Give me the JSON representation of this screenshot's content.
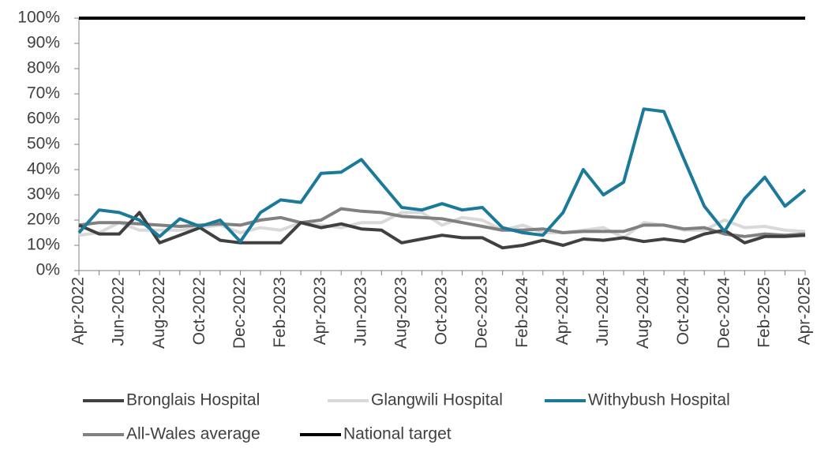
{
  "chart_data": {
    "type": "line",
    "categories": [
      "Apr-2022",
      null,
      "Jun-2022",
      null,
      "Aug-2022",
      null,
      "Oct-2022",
      null,
      "Dec-2022",
      null,
      "Feb-2023",
      null,
      "Apr-2023",
      null,
      "Jun-2023",
      null,
      "Aug-2023",
      null,
      "Oct-2023",
      null,
      "Dec-2023",
      null,
      "Feb-2024",
      null,
      "Apr-2024",
      null,
      "Jun-2024",
      null,
      "Aug-2024",
      null,
      "Oct-2024",
      null,
      "Dec-2024",
      null,
      "Feb-2025",
      null,
      "Apr-2025"
    ],
    "series": [
      {
        "name": "Bronglais Hospital",
        "color": "#404040",
        "values": [
          18,
          14.5,
          14.5,
          23,
          11,
          14,
          17,
          12,
          11,
          11,
          11,
          19,
          17,
          18.5,
          16.5,
          16,
          11,
          12.5,
          14,
          13,
          13,
          9,
          10,
          12,
          10,
          12.5,
          12,
          13,
          11.5,
          12.5,
          11.5,
          14.5,
          16,
          11,
          13.5,
          13.5,
          14
        ]
      },
      {
        "name": "Glangwili Hospital",
        "color": "#d9d9d9",
        "values": [
          14,
          15,
          19,
          16,
          16,
          16,
          17,
          18,
          15,
          17,
          16,
          19,
          18,
          17,
          19,
          19,
          23,
          23,
          18,
          21,
          20,
          16,
          18,
          15,
          15,
          16,
          17,
          13,
          19,
          18,
          16,
          16,
          20,
          17,
          17.5,
          16,
          15.5
        ]
      },
      {
        "name": "Withybush Hospital",
        "color": "#1b7a99",
        "values": [
          15,
          24,
          23,
          20,
          13.5,
          20.5,
          17.5,
          20,
          11.5,
          23,
          28,
          27,
          38.5,
          39,
          44,
          34.5,
          25,
          24,
          26.5,
          24,
          25,
          17,
          15,
          14,
          23,
          40,
          30,
          35,
          64,
          63,
          44,
          25.5,
          15.5,
          28.5,
          37,
          25.5,
          32
        ]
      },
      {
        "name": "All-Wales average",
        "color": "#808080",
        "values": [
          18,
          19,
          19,
          18.5,
          18,
          17.5,
          18,
          18.5,
          18,
          20,
          21,
          19,
          20,
          24.5,
          23.5,
          23,
          21.5,
          21,
          20.5,
          19,
          17.5,
          16,
          16,
          16.5,
          15,
          15.5,
          15.5,
          15.5,
          18,
          18,
          16.5,
          17,
          14.5,
          13.5,
          14.5,
          14,
          14.5
        ]
      },
      {
        "name": "National target",
        "color": "#000000",
        "values": [
          100,
          100,
          100,
          100,
          100,
          100,
          100,
          100,
          100,
          100,
          100,
          100,
          100,
          100,
          100,
          100,
          100,
          100,
          100,
          100,
          100,
          100,
          100,
          100,
          100,
          100,
          100,
          100,
          100,
          100,
          100,
          100,
          100,
          100,
          100,
          100,
          100
        ]
      }
    ],
    "ylim": [
      0,
      100
    ],
    "yticks": [
      {
        "value": 0,
        "label": "0%"
      },
      {
        "value": 10,
        "label": "10%"
      },
      {
        "value": 20,
        "label": "20%"
      },
      {
        "value": 30,
        "label": "30%"
      },
      {
        "value": 40,
        "label": "40%"
      },
      {
        "value": 50,
        "label": "50%"
      },
      {
        "value": 60,
        "label": "60%"
      },
      {
        "value": 70,
        "label": "70%"
      },
      {
        "value": 80,
        "label": "80%"
      },
      {
        "value": 90,
        "label": "90%"
      },
      {
        "value": 100,
        "label": "100%"
      }
    ]
  }
}
